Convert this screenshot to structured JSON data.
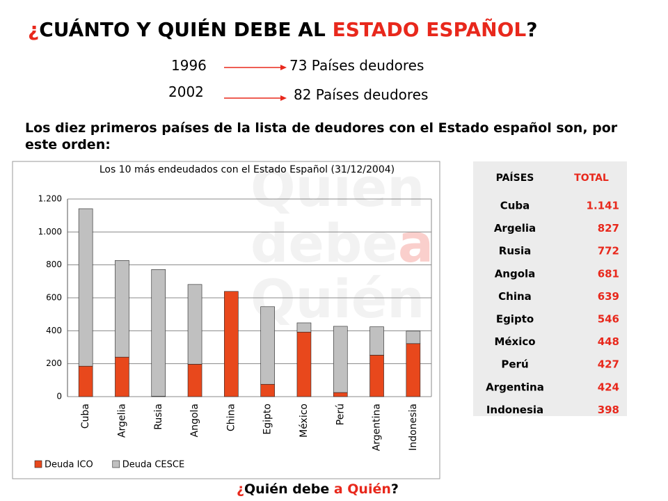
{
  "header": {
    "title": [
      "¿",
      "CUÁNTO Y QUIÉN DEBE AL ",
      "ESTADO ESPAÑOL",
      "?"
    ],
    "years": [
      {
        "year": "1996",
        "text": "73 Países deudores"
      },
      {
        "year": "2002",
        "text": "82 Países deudores"
      }
    ],
    "intro": "Los diez primeros países de la lista de deudores con el Estado español son, por este orden:"
  },
  "watermark": [
    "Quién",
    "debe",
    "a",
    "Quién"
  ],
  "chart_data": {
    "type": "bar",
    "stacked": true,
    "title": "Los 10 más endeudados con el Estado Español (31/12/2004)",
    "categories": [
      "Cuba",
      "Argelia",
      "Rusia",
      "Angola",
      "China",
      "Egipto",
      "México",
      "Perú",
      "Argentina",
      "Indonesia"
    ],
    "series": [
      {
        "name": "Deuda ICO",
        "color": "#e8481c",
        "values": [
          185,
          240,
          2,
          197,
          639,
          75,
          392,
          25,
          252,
          322
        ]
      },
      {
        "name": "Deuda CESCE",
        "color": "#c0c0c0",
        "values": [
          956,
          587,
          770,
          484,
          0,
          471,
          56,
          402,
          172,
          76
        ]
      }
    ],
    "ylim": [
      0,
      1200
    ],
    "yticks": [
      0,
      200,
      400,
      600,
      800,
      {
        "value": 1000,
        "label": "1.000"
      },
      {
        "value": 1200,
        "label": "1.200"
      }
    ],
    "grid": true,
    "legend": "bottom-left"
  },
  "table": {
    "header": [
      "PAÍSES",
      "TOTAL"
    ],
    "rows": [
      [
        "Cuba",
        "1.141"
      ],
      [
        "Argelia",
        "827"
      ],
      [
        "Rusia",
        "772"
      ],
      [
        "Angola",
        "681"
      ],
      [
        "China",
        "639"
      ],
      [
        "Egipto",
        "546"
      ],
      [
        "México",
        "448"
      ],
      [
        "Perú",
        "427"
      ],
      [
        "Argentina",
        "424"
      ],
      [
        "Indonesia",
        "398"
      ]
    ]
  },
  "footer": [
    "¿",
    "Quién debe ",
    "a Quién",
    "?"
  ]
}
